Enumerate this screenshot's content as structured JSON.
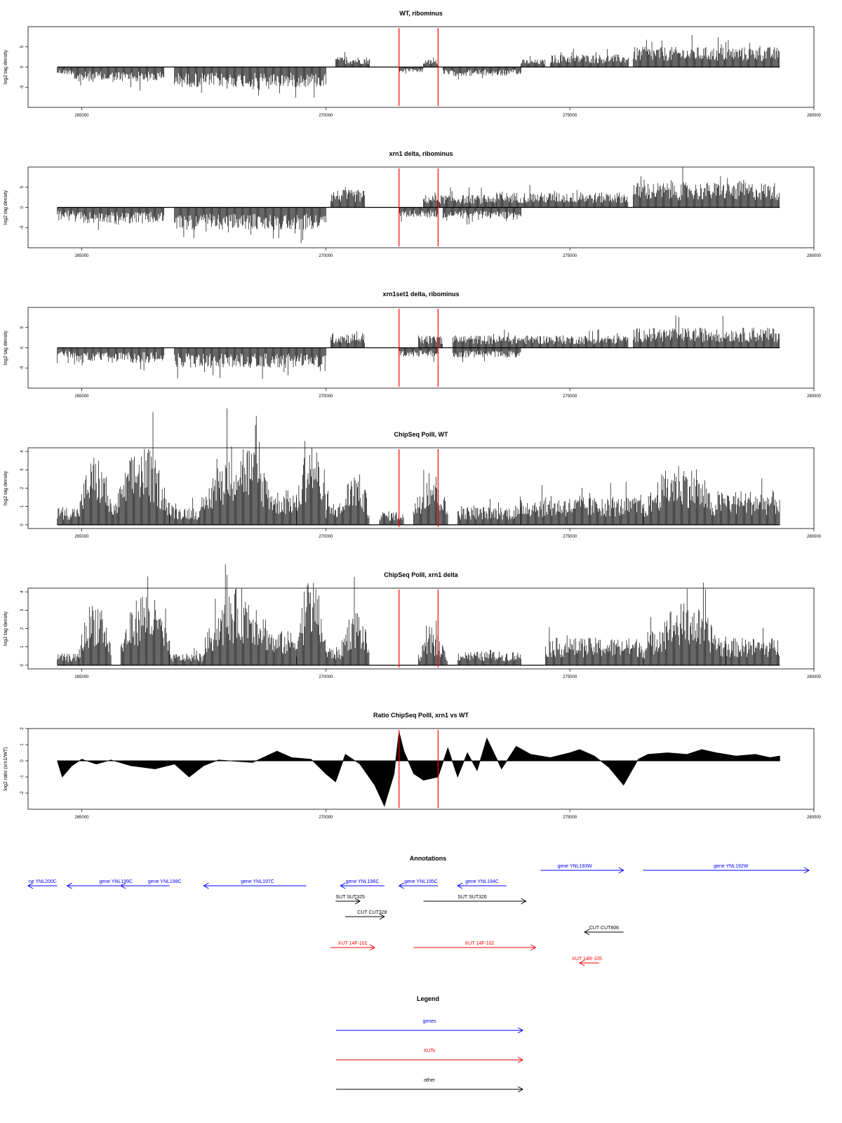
{
  "chart_data": [
    {
      "type": "bar",
      "title": "WT, ribominus",
      "ylabel": "log2 tag density",
      "xlim": [
        263900,
        280000
      ],
      "ylim": [
        -10,
        10
      ],
      "yticks": [
        -5,
        0,
        5
      ],
      "xticks": [
        265000,
        270000,
        275000,
        280000
      ],
      "bar_baseline": 0,
      "markers_x": [
        271500,
        272300
      ],
      "segments": [
        {
          "x": [
            264500,
            264850
          ],
          "level": -1.5
        },
        {
          "x": [
            264850,
            266700
          ],
          "level": -3
        },
        {
          "x": [
            266900,
            270000
          ],
          "level": -4
        },
        {
          "x": [
            270200,
            270900
          ],
          "level": 2
        },
        {
          "x": [
            271500,
            272000
          ],
          "level": -1
        },
        {
          "x": [
            272000,
            272300
          ],
          "level": 1.5
        },
        {
          "x": [
            272400,
            274000
          ],
          "level": -1.8
        },
        {
          "x": [
            274000,
            274500
          ],
          "level": 1.5
        },
        {
          "x": [
            274600,
            276200
          ],
          "level": 2.5
        },
        {
          "x": [
            276300,
            279300
          ],
          "level": 4
        }
      ]
    },
    {
      "type": "bar",
      "title": "xrn1 delta, ribominus",
      "ylabel": "log2 tag density",
      "xlim": [
        263900,
        280000
      ],
      "ylim": [
        -10,
        10
      ],
      "yticks": [
        -5,
        0,
        5
      ],
      "xticks": [
        265000,
        270000,
        275000,
        280000
      ],
      "bar_baseline": 0,
      "markers_x": [
        271500,
        272300
      ],
      "segments": [
        {
          "x": [
            264500,
            264850
          ],
          "level": -2
        },
        {
          "x": [
            264850,
            266700
          ],
          "level": -3.2
        },
        {
          "x": [
            266900,
            270000
          ],
          "level": -4.5
        },
        {
          "x": [
            270100,
            270800
          ],
          "level": 3.5
        },
        {
          "x": [
            271500,
            272300
          ],
          "level": -2
        },
        {
          "x": [
            272000,
            273500
          ],
          "level": 2.5
        },
        {
          "x": [
            272400,
            274000
          ],
          "level": -2.2
        },
        {
          "x": [
            273500,
            276200
          ],
          "level": 3
        },
        {
          "x": [
            276300,
            279300
          ],
          "level": 5
        }
      ]
    },
    {
      "type": "bar",
      "title": "xrn1set1 delta, ribominus",
      "ylabel": "log2 tag density",
      "xlim": [
        263900,
        280000
      ],
      "ylim": [
        -10,
        10
      ],
      "yticks": [
        -5,
        0,
        5
      ],
      "xticks": [
        265000,
        270000,
        275000,
        280000
      ],
      "bar_baseline": 0,
      "markers_x": [
        271500,
        272300
      ],
      "segments": [
        {
          "x": [
            264500,
            264850
          ],
          "level": -2
        },
        {
          "x": [
            264850,
            266700
          ],
          "level": -3
        },
        {
          "x": [
            266900,
            270000
          ],
          "level": -4
        },
        {
          "x": [
            270100,
            270800
          ],
          "level": 3
        },
        {
          "x": [
            271500,
            272300
          ],
          "level": -1.8
        },
        {
          "x": [
            271900,
            272400
          ],
          "level": 2.5
        },
        {
          "x": [
            272600,
            274000
          ],
          "level": -2
        },
        {
          "x": [
            272600,
            276200
          ],
          "level": 2.5
        },
        {
          "x": [
            276300,
            279300
          ],
          "level": 4
        }
      ]
    },
    {
      "type": "bar",
      "title": "ChipSeq PolII, WT",
      "ylabel": "log2 tag density",
      "xlim": [
        263900,
        280000
      ],
      "ylim": [
        -0.2,
        4.2
      ],
      "yticks": [
        0,
        1,
        2,
        3,
        4
      ],
      "xticks": [
        265000,
        270000,
        275000,
        280000
      ],
      "bar_baseline": 0,
      "markers_x": [
        271500,
        272300
      ],
      "segments": [
        {
          "x": [
            264500,
            264950
          ],
          "level": 0.8
        },
        {
          "x": [
            264950,
            265600
          ],
          "level": 2.8,
          "hump": true
        },
        {
          "x": [
            265600,
            265700
          ],
          "level": 1
        },
        {
          "x": [
            265700,
            266800
          ],
          "level": 3.2,
          "hump": true
        },
        {
          "x": [
            266800,
            267500
          ],
          "level": 0.8
        },
        {
          "x": [
            267500,
            269000
          ],
          "level": 3.4,
          "hump": true
        },
        {
          "x": [
            269000,
            269400
          ],
          "level": 1.5
        },
        {
          "x": [
            269400,
            270000
          ],
          "level": 3.5,
          "hump": true
        },
        {
          "x": [
            270000,
            270300
          ],
          "level": 1
        },
        {
          "x": [
            270300,
            270900
          ],
          "level": 2.2,
          "hump": true
        },
        {
          "x": [
            271100,
            271600
          ],
          "level": 0.6
        },
        {
          "x": [
            271800,
            272500
          ],
          "level": 2.2,
          "hump": true
        },
        {
          "x": [
            272700,
            274000
          ],
          "level": 0.8
        },
        {
          "x": [
            274000,
            276500
          ],
          "level": 1.2
        },
        {
          "x": [
            276500,
            278000
          ],
          "level": 2.5,
          "hump": true
        },
        {
          "x": [
            278000,
            279300
          ],
          "level": 1.5
        }
      ]
    },
    {
      "type": "bar",
      "title": "ChipSeq PolII, xrn1 delta",
      "ylabel": "log2 tag density",
      "xlim": [
        263900,
        280000
      ],
      "ylim": [
        -0.2,
        4.2
      ],
      "yticks": [
        0,
        1,
        2,
        3,
        4
      ],
      "xticks": [
        265000,
        270000,
        275000,
        280000
      ],
      "bar_baseline": 0,
      "markers_x": [
        271500,
        272300
      ],
      "segments": [
        {
          "x": [
            264500,
            264950
          ],
          "level": 0.5
        },
        {
          "x": [
            264950,
            265600
          ],
          "level": 2.7,
          "hump": true
        },
        {
          "x": [
            265800,
            266800
          ],
          "level": 3,
          "hump": true
        },
        {
          "x": [
            266800,
            267500
          ],
          "level": 0.5
        },
        {
          "x": [
            267500,
            269000
          ],
          "level": 3.1,
          "hump": true
        },
        {
          "x": [
            269000,
            269400
          ],
          "level": 1.5
        },
        {
          "x": [
            269400,
            270000
          ],
          "level": 3.6,
          "hump": true
        },
        {
          "x": [
            270000,
            270300
          ],
          "level": 0.8
        },
        {
          "x": [
            270300,
            270900
          ],
          "level": 2.3,
          "hump": true
        },
        {
          "x": [
            271900,
            272500
          ],
          "level": 1.3,
          "hump": true
        },
        {
          "x": [
            272700,
            274000
          ],
          "level": 0.6
        },
        {
          "x": [
            274500,
            276500
          ],
          "level": 1.2
        },
        {
          "x": [
            276500,
            278200
          ],
          "level": 2.5,
          "hump": true
        },
        {
          "x": [
            278200,
            279300
          ],
          "level": 1.2
        }
      ]
    },
    {
      "type": "area",
      "title": "Ratio ChipSeq PolII, xrn1 vs WT",
      "ylabel": "log2 ratio (xrn1/WT)",
      "xlim": [
        263900,
        280000
      ],
      "ylim": [
        -3,
        2
      ],
      "yticks": [
        -2,
        -1,
        0,
        1,
        2
      ],
      "xticks": [
        265000,
        270000,
        275000,
        280000
      ],
      "markers_x": [
        271500,
        272300
      ],
      "x": [
        264500,
        264600,
        264800,
        265000,
        265300,
        265600,
        266000,
        266500,
        266900,
        267200,
        267500,
        267800,
        268500,
        269000,
        269300,
        269700,
        270000,
        270200,
        270400,
        270700,
        271000,
        271200,
        271400,
        271500,
        271600,
        271800,
        272000,
        272300,
        272500,
        272700,
        272900,
        273100,
        273300,
        273600,
        273900,
        274200,
        274600,
        275000,
        275200,
        275500,
        275800,
        276100,
        276400,
        276600,
        277000,
        277400,
        277700,
        278000,
        278400,
        278800,
        279100,
        279300
      ],
      "y": [
        0,
        -1.0,
        -0.3,
        0.1,
        -0.2,
        0.05,
        -0.3,
        -0.5,
        -0.2,
        -1.0,
        -0.3,
        0.05,
        -0.1,
        0.6,
        0.2,
        0.1,
        -0.8,
        -1.3,
        0.4,
        -0.2,
        -1.5,
        -2.8,
        -0.8,
        1.8,
        0.6,
        -0.8,
        -1.2,
        -1.0,
        0.8,
        -1.0,
        0.5,
        -0.6,
        1.4,
        -0.5,
        0.9,
        0.4,
        0.2,
        0.5,
        0.7,
        0.3,
        -0.4,
        -1.5,
        0.1,
        0.4,
        0.5,
        0.4,
        0.7,
        0.5,
        0.3,
        0.4,
        0.2,
        0.3
      ]
    }
  ],
  "annotations": {
    "title": "Annotations",
    "xlim": [
      263900,
      280000
    ],
    "items": [
      {
        "label": "ne YNL200C",
        "x1": 263900,
        "x2": 264500,
        "dir": "left",
        "row": 0,
        "color": "#0000ff",
        "labelX": 264200
      },
      {
        "label": "gene YNL199C",
        "x1": 264700,
        "x2": 266300,
        "dir": "left",
        "row": 0,
        "color": "#0000ff",
        "labelX": 265700
      },
      {
        "label": "gene YNL198C",
        "x1": 265800,
        "x2": 266800,
        "dir": "left",
        "row": 0,
        "color": "#0000ff",
        "labelX": 266700
      },
      {
        "label": "gene YNL197C",
        "x1": 267500,
        "x2": 269600,
        "dir": "left",
        "row": 0,
        "color": "#0000ff",
        "labelX": 268600
      },
      {
        "label": "gene YNL196C",
        "x1": 270300,
        "x2": 271200,
        "dir": "left",
        "row": 0,
        "color": "#0000ff",
        "labelX": 270750
      },
      {
        "label": "gene YNL195C",
        "x1": 271500,
        "x2": 272300,
        "dir": "left",
        "row": 0,
        "color": "#0000ff",
        "labelX": 271950
      },
      {
        "label": "gene YNL194C",
        "x1": 272700,
        "x2": 273700,
        "dir": "left",
        "row": 0,
        "color": "#0000ff",
        "labelX": 273200
      },
      {
        "label": "gene YNL193W",
        "x1": 274400,
        "x2": 276100,
        "dir": "right",
        "row": -1,
        "color": "#0000ff",
        "labelX": 275100
      },
      {
        "label": "gene YNL192W",
        "x1": 276500,
        "x2": 279900,
        "dir": "right",
        "row": -1,
        "color": "#0000ff",
        "labelX": 278300
      },
      {
        "label": "SUT SUT325",
        "x1": 270200,
        "x2": 270700,
        "dir": "right",
        "row": 1,
        "color": "#000000",
        "labelX": 270500
      },
      {
        "label": "SUT SUT326",
        "x1": 272000,
        "x2": 274100,
        "dir": "right",
        "row": 1,
        "color": "#000000",
        "labelX": 273000
      },
      {
        "label": "CUT CUT328",
        "x1": 270400,
        "x2": 271200,
        "dir": "right",
        "row": 2,
        "color": "#000000",
        "labelX": 270950
      },
      {
        "label": "CUT CUT806",
        "x1": 275300,
        "x2": 276100,
        "dir": "left",
        "row": 3,
        "color": "#000000",
        "labelX": 275700
      },
      {
        "label": "XUT 14F-101",
        "x1": 270100,
        "x2": 271000,
        "dir": "right",
        "row": 4,
        "color": "#ff0000",
        "labelX": 270550
      },
      {
        "label": "XUT 14F-102",
        "x1": 271800,
        "x2": 274300,
        "dir": "right",
        "row": 4,
        "color": "#ff0000",
        "labelX": 273150
      },
      {
        "label": "XUT 14R-105",
        "x1": 275200,
        "x2": 275600,
        "dir": "left",
        "row": 5,
        "color": "#ff0000",
        "labelX": 275350
      }
    ]
  },
  "legend": {
    "title": "Legend",
    "entries": [
      {
        "label": "genes",
        "color": "#0000ff"
      },
      {
        "label": "XUTs",
        "color": "#ff0000"
      },
      {
        "label": "other",
        "color": "#000000"
      }
    ]
  },
  "colors": {
    "marker": "#ff0000",
    "bars": "#000000",
    "axis": "#000000"
  }
}
